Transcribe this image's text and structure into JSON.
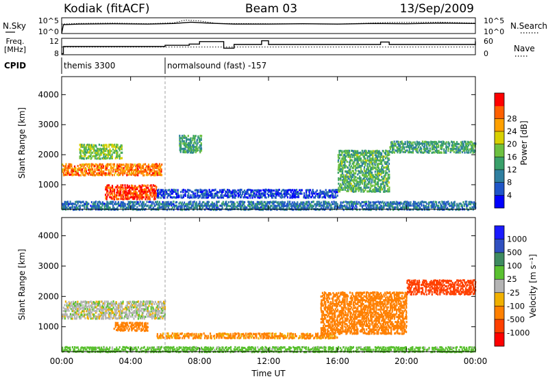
{
  "header": {
    "station": "Kodiak (fitACF)",
    "beam": "Beam 03",
    "date": "13/Sep/2009"
  },
  "panel_labels": {
    "nsky": "N.Sky",
    "nsearch": "N.Search",
    "freq": "Freq.",
    "freq_unit": "[MHz]",
    "nave": "Nave",
    "cpid": "CPID"
  },
  "small_axes": {
    "noise_ticks_left": [
      "10^5",
      "10^0"
    ],
    "noise_ticks_right": [
      "10^5",
      "10^0"
    ],
    "freq_ticks_left": [
      "12",
      "8"
    ],
    "nave_ticks_right": [
      "60",
      "0"
    ]
  },
  "cpid_segments": [
    {
      "start_hour": 0.0,
      "label": "themis 3300"
    },
    {
      "start_hour": 6.0,
      "label": "normalsound (fast) -157"
    }
  ],
  "x_axis": {
    "label": "Time UT",
    "ticks": [
      "00:00",
      "04:00",
      "08:00",
      "12:00",
      "16:00",
      "20:00",
      "00:00"
    ],
    "range_hours": [
      0,
      24
    ]
  },
  "y_axis": {
    "label": "Slant Range [km]",
    "ticks": [
      "1000",
      "2000",
      "3000",
      "4000"
    ],
    "range_km": [
      180,
      4600
    ]
  },
  "power_colorbar": {
    "label": "Power [dB]",
    "ticks": [
      "4",
      "8",
      "12",
      "16",
      "20",
      "24",
      "28"
    ],
    "colors": [
      "#0000ff",
      "#1f55c8",
      "#2f7fa0",
      "#39a06a",
      "#6dc040",
      "#d8d000",
      "#ffa000",
      "#ff6000",
      "#ff0000"
    ]
  },
  "velocity_colorbar": {
    "label": "Velocity [m s⁻¹]",
    "ticks": [
      "1000",
      "500",
      "100",
      "25",
      "-25",
      "-100",
      "-500",
      "-1000"
    ],
    "colors": [
      "#1a1aff",
      "#3050c0",
      "#3e8a60",
      "#5ac030",
      "#b4b4b4",
      "#f0b000",
      "#ff8000",
      "#ff4000",
      "#ff0000"
    ]
  },
  "chart_data": [
    {
      "type": "line",
      "panel": "noise",
      "series": [
        {
          "name": "N.Sky",
          "x": [
            0,
            0.1,
            1,
            3,
            5,
            6.5,
            7.5,
            8.5,
            10,
            12,
            14,
            16,
            18,
            20,
            22,
            24
          ],
          "y": [
            0,
            2.8,
            3.0,
            3.1,
            3.0,
            3.2,
            3.6,
            3.3,
            3.0,
            3.0,
            3.1,
            3.0,
            3.2,
            3.1,
            3.3,
            3.2
          ]
        },
        {
          "name": "N.Search",
          "x": [
            0,
            1,
            3,
            5,
            6.5,
            7.2,
            8,
            9,
            12,
            16,
            19,
            22,
            24
          ],
          "y": [
            3.0,
            3.2,
            3.3,
            3.1,
            3.4,
            4.3,
            4.0,
            3.2,
            3.1,
            3.0,
            3.5,
            3.6,
            3.3
          ]
        }
      ]
    },
    {
      "type": "line",
      "panel": "freq_nave",
      "series": [
        {
          "name": "Freq",
          "x": [
            0,
            0.1,
            6,
            7.4,
            8,
            9.4,
            10,
            11.6,
            12,
            16,
            18.5,
            19,
            22,
            24
          ],
          "y": [
            6.5,
            10.0,
            10.6,
            11.2,
            12.4,
            9.2,
            11.0,
            12.8,
            11.0,
            11.0,
            12.2,
            11.0,
            11.0,
            12.5
          ]
        },
        {
          "name": "Nave",
          "x": [
            0,
            24
          ],
          "y": [
            28,
            28
          ]
        }
      ]
    },
    {
      "type": "heatmap",
      "panel": "power",
      "x_unit": "hour UT",
      "y_unit": "km",
      "features": [
        {
          "name": "near range band",
          "t_start": 0,
          "t_end": 24,
          "r_low": 200,
          "r_high": 500,
          "value_db": 9
        },
        {
          "name": "tongue 1500 km",
          "t_start": 0,
          "t_end": 5.8,
          "r_low": 1350,
          "r_high": 1750,
          "value_db": 24
        },
        {
          "name": "tongue 800 km",
          "t_start": 2.5,
          "t_end": 5.5,
          "r_low": 550,
          "r_high": 1050,
          "value_db": 27
        },
        {
          "name": "upper 2000-2400 km",
          "t_start": 1,
          "t_end": 3.5,
          "r_low": 1900,
          "r_high": 2400,
          "value_db": 16
        },
        {
          "name": "band 2200-2600 km",
          "t_start": 6.8,
          "t_end": 8.1,
          "r_low": 2100,
          "r_high": 2700,
          "value_db": 13
        },
        {
          "name": "long band 700 km",
          "t_start": 5.5,
          "t_end": 16,
          "r_low": 600,
          "r_high": 900,
          "value_db": 6
        },
        {
          "name": "rising band",
          "t_start": 16,
          "t_end": 19,
          "r_low": 800,
          "r_high": 2200,
          "value_db": 14
        },
        {
          "name": "2200 km band",
          "t_start": 19,
          "t_end": 24,
          "r_low": 2100,
          "r_high": 2500,
          "value_db": 13
        }
      ]
    },
    {
      "type": "heatmap",
      "panel": "velocity",
      "x_unit": "hour UT",
      "y_unit": "km",
      "features": [
        {
          "name": "near range slow",
          "t_start": 0,
          "t_end": 24,
          "r_low": 200,
          "r_high": 400,
          "value_ms": 60
        },
        {
          "name": "gray band 1600 km",
          "t_start": 0,
          "t_end": 6,
          "r_low": 1300,
          "r_high": 1900,
          "value_ms": 0
        },
        {
          "name": "orange patch",
          "t_start": 3,
          "t_end": 5,
          "r_low": 900,
          "r_high": 1200,
          "value_ms": -200
        },
        {
          "name": "long band 750 km",
          "t_start": 5.5,
          "t_end": 16,
          "r_low": 650,
          "r_high": 850,
          "value_ms": -120
        },
        {
          "name": "rising orange band",
          "t_start": 15,
          "t_end": 20,
          "r_low": 800,
          "r_high": 2200,
          "value_ms": -300
        },
        {
          "name": "red band 2400 km",
          "t_start": 20,
          "t_end": 24,
          "r_low": 2100,
          "r_high": 2600,
          "value_ms": -900
        }
      ]
    }
  ]
}
